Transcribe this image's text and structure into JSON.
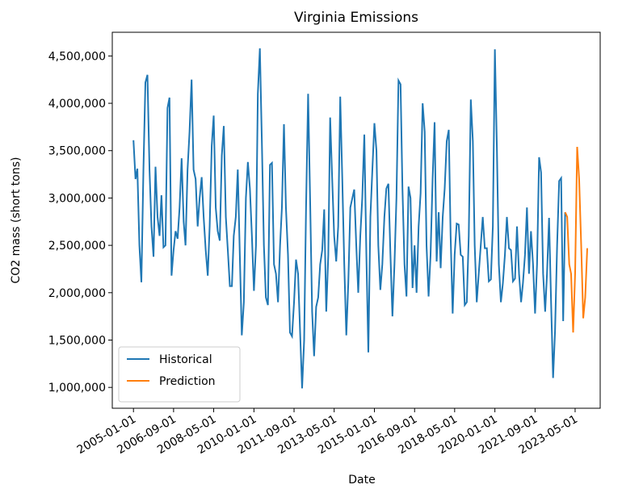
{
  "chart_data": {
    "type": "line",
    "title": "Virginia Emissions",
    "x_label": "Date",
    "y_label": "CO2 mass (short tons)",
    "xlim": [
      "2004-02-15",
      "2024-05-15"
    ],
    "xticks": [
      "2005-01-01",
      "2006-09-01",
      "2008-05-01",
      "2010-01-01",
      "2011-09-01",
      "2013-05-01",
      "2015-01-01",
      "2016-09-01",
      "2018-05-01",
      "2020-01-01",
      "2021-09-01",
      "2023-05-01"
    ],
    "ylim": [
      780000,
      4750000
    ],
    "yticks": [
      {
        "value": 1000000,
        "label": "1,000,000"
      },
      {
        "value": 1500000,
        "label": "1,500,000"
      },
      {
        "value": 2000000,
        "label": "2,000,000"
      },
      {
        "value": 2500000,
        "label": "2,500,000"
      },
      {
        "value": 3000000,
        "label": "3,000,000"
      },
      {
        "value": 3500000,
        "label": "3,500,000"
      },
      {
        "value": 4000000,
        "label": "4,000,000"
      },
      {
        "value": 4500000,
        "label": "4,500,000"
      }
    ],
    "legend": "lower left",
    "series": [
      {
        "name": "Historical",
        "color": "#1f77b4",
        "x": [
          "2005-01-01",
          "2005-02-01",
          "2005-03-01",
          "2005-04-01",
          "2005-05-01",
          "2005-06-01",
          "2005-07-01",
          "2005-08-01",
          "2005-09-01",
          "2005-10-01",
          "2005-11-01",
          "2005-12-01",
          "2006-01-01",
          "2006-02-01",
          "2006-03-01",
          "2006-04-01",
          "2006-05-01",
          "2006-06-01",
          "2006-07-01",
          "2006-08-01",
          "2006-09-01",
          "2006-10-01",
          "2006-11-01",
          "2006-12-01",
          "2007-01-01",
          "2007-02-01",
          "2007-03-01",
          "2007-04-01",
          "2007-05-01",
          "2007-06-01",
          "2007-07-01",
          "2007-08-01",
          "2007-09-01",
          "2007-10-01",
          "2007-11-01",
          "2007-12-01",
          "2008-01-01",
          "2008-02-01",
          "2008-03-01",
          "2008-04-01",
          "2008-05-01",
          "2008-06-01",
          "2008-07-01",
          "2008-08-01",
          "2008-09-01",
          "2008-10-01",
          "2008-11-01",
          "2008-12-01",
          "2009-01-01",
          "2009-02-01",
          "2009-03-01",
          "2009-04-01",
          "2009-05-01",
          "2009-06-01",
          "2009-07-01",
          "2009-08-01",
          "2009-09-01",
          "2009-10-01",
          "2009-11-01",
          "2009-12-01",
          "2010-01-01",
          "2010-02-01",
          "2010-03-01",
          "2010-04-01",
          "2010-05-01",
          "2010-06-01",
          "2010-07-01",
          "2010-08-01",
          "2010-09-01",
          "2010-10-01",
          "2010-11-01",
          "2010-12-01",
          "2011-01-01",
          "2011-02-01",
          "2011-03-01",
          "2011-04-01",
          "2011-05-01",
          "2011-06-01",
          "2011-07-01",
          "2011-08-01",
          "2011-09-01",
          "2011-10-01",
          "2011-11-01",
          "2011-12-01",
          "2012-01-01",
          "2012-02-01",
          "2012-03-01",
          "2012-04-01",
          "2012-05-01",
          "2012-06-01",
          "2012-07-01",
          "2012-08-01",
          "2012-09-01",
          "2012-10-01",
          "2012-11-01",
          "2012-12-01",
          "2013-01-01",
          "2013-02-01",
          "2013-03-01",
          "2013-04-01",
          "2013-05-01",
          "2013-06-01",
          "2013-07-01",
          "2013-08-01",
          "2013-09-01",
          "2013-10-01",
          "2013-11-01",
          "2013-12-01",
          "2014-01-01",
          "2014-02-01",
          "2014-03-01",
          "2014-04-01",
          "2014-05-01",
          "2014-06-01",
          "2014-07-01",
          "2014-08-01",
          "2014-09-01",
          "2014-10-01",
          "2014-11-01",
          "2014-12-01",
          "2015-01-01",
          "2015-02-01",
          "2015-03-01",
          "2015-04-01",
          "2015-05-01",
          "2015-06-01",
          "2015-07-01",
          "2015-08-01",
          "2015-09-01",
          "2015-10-01",
          "2015-11-01",
          "2015-12-01",
          "2016-01-01",
          "2016-02-01",
          "2016-03-01",
          "2016-04-01",
          "2016-05-01",
          "2016-06-01",
          "2016-07-01",
          "2016-08-01",
          "2016-09-01",
          "2016-10-01",
          "2016-11-01",
          "2016-12-01",
          "2017-01-01",
          "2017-02-01",
          "2017-03-01",
          "2017-04-01",
          "2017-05-01",
          "2017-06-01",
          "2017-07-01",
          "2017-08-01",
          "2017-09-01",
          "2017-10-01",
          "2017-11-01",
          "2017-12-01",
          "2018-01-01",
          "2018-02-01",
          "2018-03-01",
          "2018-04-01",
          "2018-05-01",
          "2018-06-01",
          "2018-07-01",
          "2018-08-01",
          "2018-09-01",
          "2018-10-01",
          "2018-11-01",
          "2018-12-01",
          "2019-01-01",
          "2019-02-01",
          "2019-03-01",
          "2019-04-01",
          "2019-05-01",
          "2019-06-01",
          "2019-07-01",
          "2019-08-01",
          "2019-09-01",
          "2019-10-01",
          "2019-11-01",
          "2019-12-01",
          "2020-01-01",
          "2020-02-01",
          "2020-03-01",
          "2020-04-01",
          "2020-05-01",
          "2020-06-01",
          "2020-07-01",
          "2020-08-01",
          "2020-09-01",
          "2020-10-01",
          "2020-11-01",
          "2020-12-01",
          "2021-01-01",
          "2021-02-01",
          "2021-03-01",
          "2021-04-01",
          "2021-05-01",
          "2021-06-01",
          "2021-07-01",
          "2021-08-01",
          "2021-09-01",
          "2021-10-01",
          "2021-11-01",
          "2021-12-01",
          "2022-01-01",
          "2022-02-01",
          "2022-03-01",
          "2022-04-01",
          "2022-05-01",
          "2022-06-01",
          "2022-07-01",
          "2022-08-01",
          "2022-09-01",
          "2022-10-01",
          "2022-11-01",
          "2022-12-01"
        ],
        "values": [
          3610000,
          3200000,
          3310000,
          2500000,
          2110000,
          3300000,
          4220000,
          4300000,
          3300000,
          2700000,
          2380000,
          3330000,
          2800000,
          2600000,
          3030000,
          2480000,
          2500000,
          3950000,
          4060000,
          2180000,
          2450000,
          2650000,
          2570000,
          2900000,
          3420000,
          2750000,
          2500000,
          3300000,
          3700000,
          4250000,
          3300000,
          3200000,
          2700000,
          3000000,
          3220000,
          2800000,
          2450000,
          2180000,
          2700000,
          3550000,
          3870000,
          2900000,
          2650000,
          2550000,
          3450000,
          3760000,
          2800000,
          2450000,
          2070000,
          2070000,
          2600000,
          2800000,
          3300000,
          2400000,
          1550000,
          1900000,
          3000000,
          3380000,
          3100000,
          2600000,
          2020000,
          2500000,
          4100000,
          4580000,
          3600000,
          2500000,
          1950000,
          1870000,
          3350000,
          3370000,
          2300000,
          2200000,
          1900000,
          2500000,
          2900000,
          3780000,
          2900000,
          2400000,
          1580000,
          1540000,
          1900000,
          2350000,
          2200000,
          1600000,
          990000,
          1500000,
          2900000,
          4100000,
          3000000,
          1800000,
          1330000,
          1850000,
          1950000,
          2300000,
          2450000,
          2880000,
          1800000,
          2400000,
          3850000,
          3200000,
          2600000,
          2330000,
          2700000,
          4070000,
          3200000,
          2300000,
          1550000,
          2100000,
          2900000,
          3000000,
          3090000,
          2500000,
          2000000,
          2600000,
          3000000,
          3670000,
          2400000,
          1370000,
          2800000,
          3300000,
          3790000,
          3500000,
          2500000,
          2030000,
          2300000,
          2800000,
          3100000,
          3150000,
          2400000,
          1750000,
          2300000,
          3000000,
          4240000,
          4200000,
          3100000,
          2300000,
          1960000,
          3120000,
          3000000,
          2050000,
          2500000,
          2000000,
          2700000,
          3050000,
          4000000,
          3700000,
          2500000,
          1960000,
          2400000,
          3200000,
          3800000,
          2330000,
          2850000,
          2260000,
          2800000,
          3100000,
          3600000,
          3720000,
          2600000,
          1780000,
          2400000,
          2730000,
          2720000,
          2400000,
          2380000,
          1870000,
          1900000,
          2600000,
          4040000,
          3600000,
          2500000,
          1900000,
          2200000,
          2500000,
          2800000,
          2470000,
          2470000,
          2120000,
          2140000,
          2700000,
          4570000,
          3500000,
          2300000,
          1900000,
          2100000,
          2400000,
          2800000,
          2470000,
          2450000,
          2120000,
          2150000,
          2700000,
          2200000,
          1900000,
          2100000,
          2400000,
          2900000,
          2200000,
          2650000,
          2300000,
          1780000,
          2300000,
          3430000,
          3270000,
          2200000,
          1800000,
          2200000,
          2790000,
          1920000,
          1100000,
          1600000,
          2500000,
          3180000,
          3210000,
          1700000,
          2850000
        ]
      },
      {
        "name": "Prediction",
        "color": "#ff7f0e",
        "x": [
          "2022-12-01",
          "2023-01-01",
          "2023-02-01",
          "2023-03-01",
          "2023-04-01",
          "2023-05-01",
          "2023-06-01",
          "2023-07-01",
          "2023-08-01",
          "2023-09-01",
          "2023-10-01",
          "2023-11-01"
        ],
        "values": [
          2850000,
          2800000,
          2300000,
          2200000,
          1580000,
          2200000,
          3540000,
          3200000,
          2500000,
          1730000,
          1950000,
          2470000
        ]
      }
    ]
  }
}
